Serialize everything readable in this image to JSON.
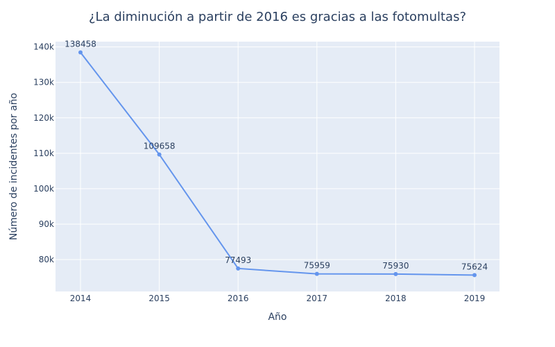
{
  "chart_data": {
    "type": "line",
    "title": "¿La diminución a partir de 2016 es gracias a las fotomultas?",
    "xlabel": "Año",
    "ylabel": "Número de incidentes por año",
    "categories": [
      "2014",
      "2015",
      "2016",
      "2017",
      "2018",
      "2019"
    ],
    "values": [
      138458,
      109658,
      77493,
      75959,
      75930,
      75624
    ],
    "data_labels": [
      "138458",
      "109658",
      "77493",
      "75959",
      "75930",
      "75624"
    ],
    "y_ticks": [
      80000,
      90000,
      100000,
      110000,
      120000,
      130000,
      140000
    ],
    "y_tick_labels": [
      "80k",
      "90k",
      "100k",
      "110k",
      "120k",
      "130k",
      "140k"
    ],
    "ylim": [
      71000,
      141500
    ],
    "grid": true,
    "colors": {
      "line": "#6495ed",
      "plot_bg": "#e5ecf6",
      "grid": "#ffffff",
      "text": "#2a3f5f"
    }
  }
}
